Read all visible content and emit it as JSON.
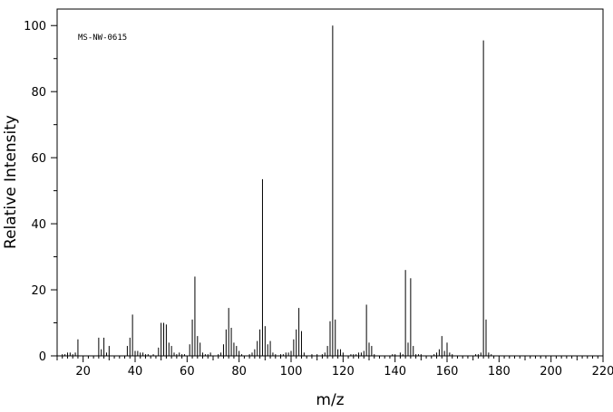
{
  "chart_data": {
    "type": "bar",
    "title": "",
    "annotation": "MS-NW-0615",
    "xlabel": "m/z",
    "ylabel": "Relative Intensity",
    "xlim": [
      10,
      220
    ],
    "ylim": [
      0,
      105
    ],
    "x_ticks": [
      20,
      40,
      60,
      80,
      100,
      120,
      140,
      160,
      180,
      200,
      220
    ],
    "y_ticks": [
      0,
      20,
      40,
      60,
      80,
      100
    ],
    "grid": false,
    "legend": "none",
    "peaks": [
      {
        "mz": 12,
        "intensity": 0.5
      },
      {
        "mz": 13,
        "intensity": 0.5
      },
      {
        "mz": 14,
        "intensity": 1
      },
      {
        "mz": 15,
        "intensity": 1
      },
      {
        "mz": 16,
        "intensity": 0.5
      },
      {
        "mz": 17,
        "intensity": 1
      },
      {
        "mz": 18,
        "intensity": 5
      },
      {
        "mz": 26,
        "intensity": 5.5
      },
      {
        "mz": 27,
        "intensity": 2
      },
      {
        "mz": 28,
        "intensity": 5.5
      },
      {
        "mz": 29,
        "intensity": 1
      },
      {
        "mz": 30,
        "intensity": 3
      },
      {
        "mz": 37,
        "intensity": 3
      },
      {
        "mz": 38,
        "intensity": 5.5
      },
      {
        "mz": 39,
        "intensity": 12.5
      },
      {
        "mz": 40,
        "intensity": 1.5
      },
      {
        "mz": 41,
        "intensity": 1.5
      },
      {
        "mz": 42,
        "intensity": 1
      },
      {
        "mz": 43,
        "intensity": 1
      },
      {
        "mz": 44,
        "intensity": 0.5
      },
      {
        "mz": 45,
        "intensity": 0.5
      },
      {
        "mz": 47,
        "intensity": 0.5
      },
      {
        "mz": 49,
        "intensity": 2.5
      },
      {
        "mz": 50,
        "intensity": 10
      },
      {
        "mz": 51,
        "intensity": 10
      },
      {
        "mz": 52,
        "intensity": 9.5
      },
      {
        "mz": 53,
        "intensity": 4
      },
      {
        "mz": 54,
        "intensity": 3
      },
      {
        "mz": 55,
        "intensity": 1
      },
      {
        "mz": 56,
        "intensity": 0.5
      },
      {
        "mz": 57,
        "intensity": 1
      },
      {
        "mz": 58,
        "intensity": 0.5
      },
      {
        "mz": 59,
        "intensity": 0.5
      },
      {
        "mz": 61,
        "intensity": 3.5
      },
      {
        "mz": 62,
        "intensity": 11
      },
      {
        "mz": 63,
        "intensity": 24
      },
      {
        "mz": 64,
        "intensity": 6
      },
      {
        "mz": 65,
        "intensity": 4
      },
      {
        "mz": 66,
        "intensity": 1
      },
      {
        "mz": 67,
        "intensity": 0.5
      },
      {
        "mz": 68,
        "intensity": 0.5
      },
      {
        "mz": 69,
        "intensity": 1
      },
      {
        "mz": 72,
        "intensity": 0.5
      },
      {
        "mz": 73,
        "intensity": 1
      },
      {
        "mz": 74,
        "intensity": 3.5
      },
      {
        "mz": 75,
        "intensity": 8
      },
      {
        "mz": 76,
        "intensity": 14.5
      },
      {
        "mz": 77,
        "intensity": 8.5
      },
      {
        "mz": 78,
        "intensity": 4
      },
      {
        "mz": 79,
        "intensity": 3
      },
      {
        "mz": 80,
        "intensity": 1.5
      },
      {
        "mz": 81,
        "intensity": 0.5
      },
      {
        "mz": 84,
        "intensity": 0.5
      },
      {
        "mz": 85,
        "intensity": 1
      },
      {
        "mz": 86,
        "intensity": 2
      },
      {
        "mz": 87,
        "intensity": 4.5
      },
      {
        "mz": 88,
        "intensity": 8
      },
      {
        "mz": 89,
        "intensity": 53.5
      },
      {
        "mz": 90,
        "intensity": 9
      },
      {
        "mz": 91,
        "intensity": 3.5
      },
      {
        "mz": 92,
        "intensity": 4.5
      },
      {
        "mz": 93,
        "intensity": 1
      },
      {
        "mz": 94,
        "intensity": 0.5
      },
      {
        "mz": 96,
        "intensity": 0.5
      },
      {
        "mz": 97,
        "intensity": 0.5
      },
      {
        "mz": 98,
        "intensity": 1
      },
      {
        "mz": 99,
        "intensity": 1
      },
      {
        "mz": 100,
        "intensity": 1.5
      },
      {
        "mz": 101,
        "intensity": 5
      },
      {
        "mz": 102,
        "intensity": 8
      },
      {
        "mz": 103,
        "intensity": 14.5
      },
      {
        "mz": 104,
        "intensity": 7.5
      },
      {
        "mz": 105,
        "intensity": 1
      },
      {
        "mz": 108,
        "intensity": 0.5
      },
      {
        "mz": 110,
        "intensity": 0.5
      },
      {
        "mz": 112,
        "intensity": 0.5
      },
      {
        "mz": 113,
        "intensity": 1
      },
      {
        "mz": 114,
        "intensity": 3
      },
      {
        "mz": 115,
        "intensity": 10.5
      },
      {
        "mz": 116,
        "intensity": 100
      },
      {
        "mz": 117,
        "intensity": 11
      },
      {
        "mz": 118,
        "intensity": 2
      },
      {
        "mz": 119,
        "intensity": 2
      },
      {
        "mz": 120,
        "intensity": 1
      },
      {
        "mz": 123,
        "intensity": 0.5
      },
      {
        "mz": 124,
        "intensity": 0.5
      },
      {
        "mz": 125,
        "intensity": 0.5
      },
      {
        "mz": 126,
        "intensity": 1
      },
      {
        "mz": 127,
        "intensity": 1
      },
      {
        "mz": 128,
        "intensity": 1.5
      },
      {
        "mz": 129,
        "intensity": 15.5
      },
      {
        "mz": 130,
        "intensity": 4
      },
      {
        "mz": 131,
        "intensity": 3
      },
      {
        "mz": 132,
        "intensity": 0.5
      },
      {
        "mz": 139,
        "intensity": 0.5
      },
      {
        "mz": 140,
        "intensity": 0.5
      },
      {
        "mz": 142,
        "intensity": 1
      },
      {
        "mz": 143,
        "intensity": 0.5
      },
      {
        "mz": 144,
        "intensity": 26
      },
      {
        "mz": 145,
        "intensity": 4
      },
      {
        "mz": 146,
        "intensity": 23.5
      },
      {
        "mz": 147,
        "intensity": 3
      },
      {
        "mz": 148,
        "intensity": 0.5
      },
      {
        "mz": 149,
        "intensity": 0.5
      },
      {
        "mz": 150,
        "intensity": 0.5
      },
      {
        "mz": 155,
        "intensity": 0.5
      },
      {
        "mz": 156,
        "intensity": 1
      },
      {
        "mz": 157,
        "intensity": 2
      },
      {
        "mz": 158,
        "intensity": 6
      },
      {
        "mz": 159,
        "intensity": 1.5
      },
      {
        "mz": 160,
        "intensity": 4
      },
      {
        "mz": 161,
        "intensity": 1
      },
      {
        "mz": 162,
        "intensity": 0.5
      },
      {
        "mz": 171,
        "intensity": 0.5
      },
      {
        "mz": 172,
        "intensity": 0.5
      },
      {
        "mz": 173,
        "intensity": 1
      },
      {
        "mz": 174,
        "intensity": 95.5
      },
      {
        "mz": 175,
        "intensity": 11
      },
      {
        "mz": 176,
        "intensity": 1
      },
      {
        "mz": 177,
        "intensity": 0.5
      }
    ]
  }
}
